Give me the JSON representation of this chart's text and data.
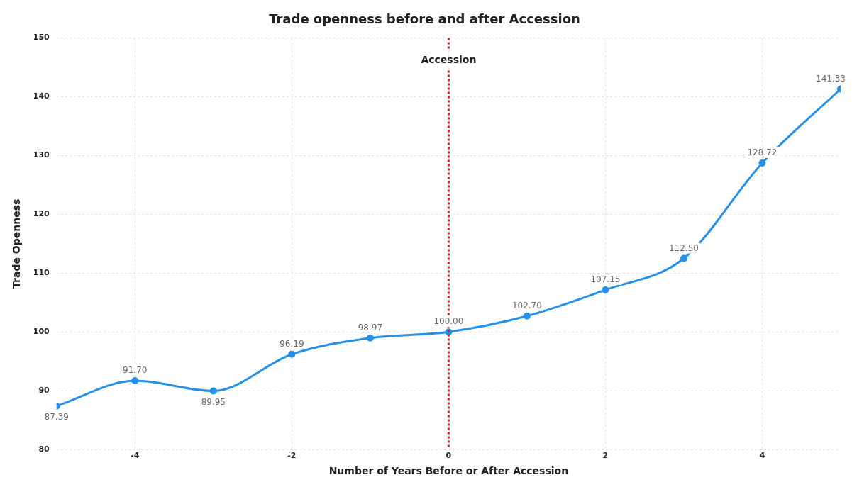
{
  "chart_data": {
    "type": "line",
    "title": "Trade openness before and after Accession",
    "xlabel": "Number of Years Before or After Accession",
    "ylabel": "Trade Openness",
    "x": [
      -5,
      -4,
      -3,
      -2,
      -1,
      0,
      1,
      2,
      3,
      4,
      5
    ],
    "series": [
      {
        "color": "#2490ea",
        "values": [
          87.39,
          91.7,
          89.95,
          96.19,
          98.97,
          100,
          102.7,
          107.15,
          112.5,
          128.72,
          141.33
        ],
        "value_labels": [
          "87.39",
          "91.70",
          "89.95",
          "96.19",
          "98.97",
          "100.00",
          "102.70",
          "107.15",
          "112.50",
          "128.72",
          "141.33"
        ]
      }
    ],
    "xlim": [
      -5,
      5
    ],
    "xticks": [
      -4,
      -2,
      0,
      2,
      4
    ],
    "ylim": [
      80,
      150
    ],
    "yticks": [
      80,
      90,
      100,
      110,
      120,
      130,
      140,
      150
    ],
    "ref_lines": [
      {
        "axis": "x",
        "value": 0,
        "label": "Accession",
        "color": "#e8112d",
        "line_style": "dotted"
      }
    ],
    "grid": true,
    "legend": false,
    "marker": "circle",
    "line_style": "solid"
  }
}
